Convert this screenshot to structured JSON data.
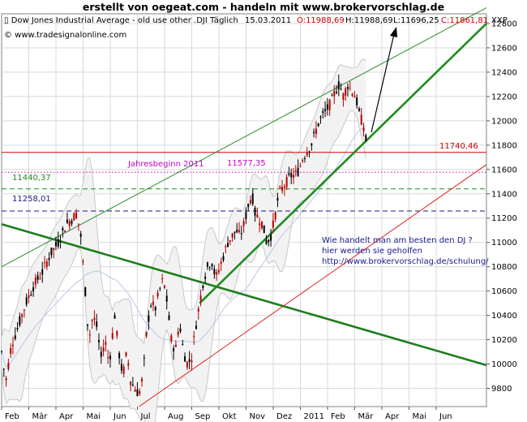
{
  "page_title": "erstellt von oegeat.com  -  handeln mit  www.brokervorschlag.de",
  "header": {
    "instrument": "Dow Jones Industrial Average - old use other .DJI Täglich",
    "date": "15.03.2011",
    "open": "O:11988,69",
    "high": "H:11988,69",
    "low": "L:11696,25",
    "close": "C:11861,81",
    "symbol": "XXP",
    "copyright": "© www.tradesignalonline.com"
  },
  "chart_data": {
    "type": "candlestick",
    "title": "Dow Jones Industrial Average - old use other .DJI Täglich",
    "x_tick_labels": [
      "Feb",
      "Mär",
      "Apr",
      "Mai",
      "Jun",
      "Jul",
      "Aug",
      "Sep",
      "Okt",
      "Nov",
      "Dez",
      "2011",
      "Feb",
      "Mär",
      "Apr",
      "Mai",
      "Jun"
    ],
    "y_tick_labels": [
      "9800",
      "10000",
      "10200",
      "10400",
      "10600",
      "10800",
      "11000",
      "11200",
      "11400",
      "11600",
      "11800",
      "12000",
      "12200",
      "12400",
      "12600",
      "12800"
    ],
    "ylim": [
      9650,
      12880
    ],
    "grid": true,
    "y_axis_position": "right",
    "price_path": [
      [
        0,
        10100
      ],
      [
        5,
        9850
      ],
      [
        12,
        10150
      ],
      [
        20,
        10300
      ],
      [
        30,
        10500
      ],
      [
        40,
        10650
      ],
      [
        50,
        10750
      ],
      [
        60,
        10900
      ],
      [
        70,
        11000
      ],
      [
        80,
        11150
      ],
      [
        88,
        11200
      ],
      [
        93,
        11240
      ],
      [
        98,
        11050
      ],
      [
        103,
        10650
      ],
      [
        108,
        10200
      ],
      [
        113,
        10400
      ],
      [
        118,
        10300
      ],
      [
        123,
        10050
      ],
      [
        128,
        10200
      ],
      [
        133,
        10000
      ],
      [
        140,
        10400
      ],
      [
        145,
        10100
      ],
      [
        150,
        9900
      ],
      [
        155,
        10100
      ],
      [
        160,
        9850
      ],
      [
        165,
        9800
      ],
      [
        170,
        9750
      ],
      [
        175,
        9900
      ],
      [
        180,
        10300
      ],
      [
        185,
        10500
      ],
      [
        190,
        10450
      ],
      [
        195,
        10600
      ],
      [
        200,
        10700
      ],
      [
        205,
        10500
      ],
      [
        210,
        10200
      ],
      [
        215,
        10100
      ],
      [
        220,
        10350
      ],
      [
        225,
        10100
      ],
      [
        230,
        10000
      ],
      [
        235,
        10050
      ],
      [
        240,
        10300
      ],
      [
        245,
        10500
      ],
      [
        250,
        10700
      ],
      [
        255,
        10800
      ],
      [
        260,
        10850
      ],
      [
        265,
        10700
      ],
      [
        270,
        10800
      ],
      [
        275,
        10900
      ],
      [
        280,
        11000
      ],
      [
        285,
        11050
      ],
      [
        290,
        11100
      ],
      [
        295,
        11050
      ],
      [
        300,
        11150
      ],
      [
        305,
        11300
      ],
      [
        310,
        11400
      ],
      [
        313,
        11250
      ],
      [
        318,
        11200
      ],
      [
        323,
        11150
      ],
      [
        328,
        11000
      ],
      [
        333,
        11050
      ],
      [
        338,
        11200
      ],
      [
        343,
        11400
      ],
      [
        348,
        11450
      ],
      [
        353,
        11500
      ],
      [
        358,
        11550
      ],
      [
        363,
        11550
      ],
      [
        368,
        11600
      ],
      [
        373,
        11700
      ],
      [
        378,
        11750
      ],
      [
        383,
        11800
      ],
      [
        388,
        11900
      ],
      [
        393,
        12000
      ],
      [
        398,
        12050
      ],
      [
        403,
        12100
      ],
      [
        408,
        12150
      ],
      [
        413,
        12250
      ],
      [
        418,
        12300
      ],
      [
        423,
        12200
      ],
      [
        428,
        12300
      ],
      [
        433,
        12250
      ],
      [
        438,
        12200
      ],
      [
        443,
        12050
      ],
      [
        448,
        11950
      ],
      [
        452,
        11800
      ]
    ],
    "horizontal_levels": [
      {
        "value": 11740.46,
        "label": "11740,46",
        "color": "#cc0000",
        "style": "solid"
      },
      {
        "value": 11577.35,
        "label": "11577,35",
        "color": "#cc00cc",
        "style": "dotted"
      },
      {
        "value": 11440.37,
        "label": "11440,37",
        "color": "#1e8c1e",
        "style": "dashed"
      },
      {
        "value": 11258.01,
        "label": "11258,01",
        "color": "#1a1a80",
        "style": "dashed"
      }
    ],
    "annotations": {
      "jahresbeginn": "Jahresbeginn 2011",
      "note_lines": [
        "Wie handelt man am besten  den DJ ?",
        "hier werden sie geholfen",
        "http://www.brokervorschlag.de/schulung/"
      ]
    },
    "trendlines": [
      {
        "from": [
          0,
          11150
        ],
        "to": [
          600,
          9990
        ],
        "color": "#1e7d1e",
        "width": "thick"
      },
      {
        "from": [
          245,
          10500
        ],
        "to": [
          600,
          12800
        ],
        "color": "#1e8c1e",
        "width": "thick"
      },
      {
        "from": [
          0,
          10800
        ],
        "to": [
          600,
          12930
        ],
        "color": "#2a8a2a",
        "width": "thin"
      },
      {
        "from": [
          170,
          9650
        ],
        "to": [
          600,
          11640
        ],
        "color": "#dd2222",
        "width": "thin"
      }
    ],
    "colors": {
      "up": "#000000",
      "down": "#b40000",
      "band": "#c8c8c8",
      "grid": "#d8d8d8",
      "note_text": "#1a1a8c",
      "jahresbeginn_text": "#cc00cc"
    }
  }
}
